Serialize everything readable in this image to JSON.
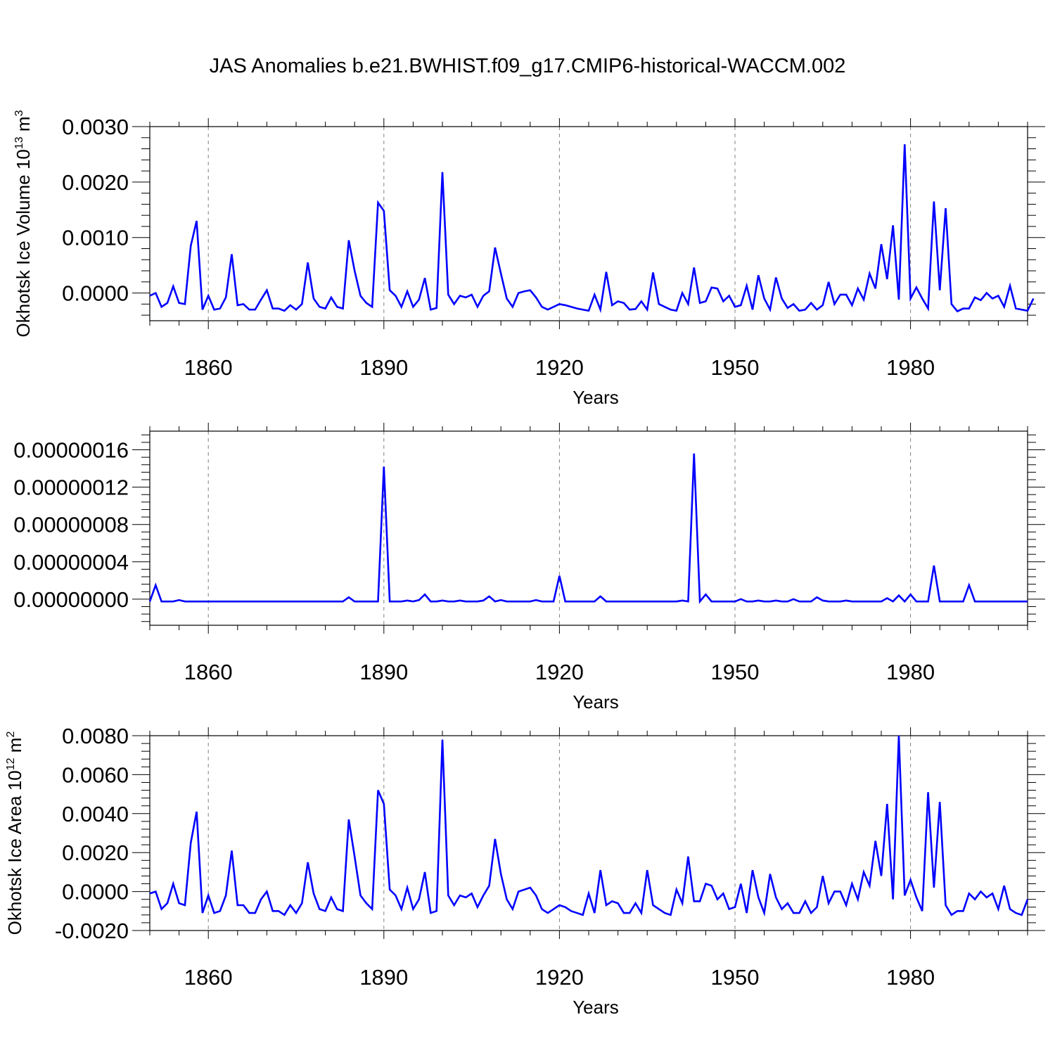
{
  "figure": {
    "title": "JAS Anomalies b.e21.BWHIST.f09_g17.CMIP6-historical-WACCM.002"
  },
  "chart_data": [
    {
      "type": "line",
      "title": "JAS Anomalies b.e21.BWHIST.f09_g17.CMIP6-historical-WACCM.002",
      "xlabel": "Years",
      "ylabel": "Okhotsk Ice Volume 10",
      "ylabel_sup1": "13",
      "ylabel_mid": " m",
      "ylabel_sup2": "3",
      "xlim": [
        1850,
        2000
      ],
      "ylim": [
        -0.0005,
        0.003
      ],
      "xticks": [
        1860,
        1890,
        1920,
        1950,
        1980
      ],
      "xtick_labels": [
        "1860",
        "1890",
        "1920",
        "1950",
        "1980"
      ],
      "yticks": [
        0.0,
        0.001,
        0.002,
        0.003
      ],
      "ytick_labels": [
        "0.0000",
        "0.0010",
        "0.0020",
        "0.0030"
      ],
      "grid": "vertical dashed at major x ticks",
      "line_color": "#0000ff",
      "series": [
        {
          "x_start": 1850,
          "values": [
            -5e-05,
            0.0,
            -0.00025,
            -0.00018,
            0.00012,
            -0.00018,
            -0.0002,
            0.00085,
            0.0013,
            -0.0003,
            -5e-05,
            -0.0003,
            -0.00028,
            -8e-05,
            0.0007,
            -0.00022,
            -0.0002,
            -0.0003,
            -0.0003,
            -0.00012,
            5e-05,
            -0.00028,
            -0.00028,
            -0.00032,
            -0.00022,
            -0.0003,
            -0.0002,
            0.00055,
            -0.0001,
            -0.00025,
            -0.00028,
            -8e-05,
            -0.00025,
            -0.00028,
            0.00095,
            0.0004,
            -5e-05,
            -0.00018,
            -0.00025,
            0.00163,
            0.00148,
            5e-05,
            -5e-05,
            -0.00025,
            3e-05,
            -0.00025,
            -0.00012,
            0.00027,
            -0.0003,
            -0.00027,
            0.00218,
            -3e-05,
            -0.0002,
            -5e-05,
            -8e-05,
            -3e-05,
            -0.00025,
            -5e-05,
            3e-05,
            0.00082,
            0.00035,
            -0.0001,
            -0.00025,
            0.0,
            3e-05,
            5e-05,
            -8e-05,
            -0.00025,
            -0.0003,
            -0.00025,
            -0.0002,
            -0.00022,
            -0.00025,
            -0.00028,
            -0.0003,
            -0.00032,
            -3e-05,
            -0.0003,
            0.00038,
            -0.00022,
            -0.00015,
            -0.00018,
            -0.0003,
            -0.00029,
            -0.00015,
            -0.0003,
            0.00037,
            -0.0002,
            -0.00025,
            -0.0003,
            -0.00032,
            0.0,
            -0.0002,
            0.00046,
            -0.00018,
            -0.00015,
            0.0001,
            8e-05,
            -0.00015,
            -5e-05,
            -0.00025,
            -0.00022,
            0.00013,
            -0.0003,
            0.00032,
            -0.0001,
            -0.0003,
            0.00028,
            -0.0001,
            -0.00027,
            -0.0002,
            -0.00032,
            -0.0003,
            -0.00018,
            -0.0003,
            -0.00022,
            0.0002,
            -0.0002,
            -3e-05,
            -3e-05,
            -0.00022,
            8e-05,
            -0.00012,
            0.00035,
            8e-05,
            0.00088,
            0.00025,
            0.00122,
            -0.00012,
            0.00268,
            -0.0001,
            0.0001,
            -0.0001,
            -0.00028,
            0.00165,
            5e-05,
            0.00153,
            -0.0002,
            -0.00033,
            -0.00028,
            -0.00028,
            -8e-05,
            -0.00013,
            0.0,
            -0.0001,
            -5e-05,
            -0.00025,
            0.00013,
            -0.00028,
            -0.0003,
            -0.00032,
            -0.0001
          ]
        }
      ]
    },
    {
      "type": "line",
      "xlabel": "Years",
      "xlim": [
        1850,
        2000
      ],
      "ylim": [
        -2.8e-08,
        1.8e-07
      ],
      "xticks": [
        1860,
        1890,
        1920,
        1950,
        1980
      ],
      "xtick_labels": [
        "1860",
        "1890",
        "1920",
        "1950",
        "1980"
      ],
      "yticks": [
        0.0,
        4e-08,
        8e-08,
        1.2e-07,
        1.6e-07
      ],
      "ytick_labels": [
        "0.00000000",
        "0.00000004",
        "0.00000008",
        "0.00000012",
        "0.00000016"
      ],
      "grid": "vertical dashed at major x ticks",
      "line_color": "#0000ff",
      "series": [
        {
          "x_start": 1850,
          "values": [
            -2.5e-09,
            1.5e-08,
            -2.5e-09,
            -2.5e-09,
            -2.5e-09,
            -1e-09,
            -2.5e-09,
            -2.5e-09,
            -2.5e-09,
            -2.5e-09,
            -2.5e-09,
            -2.5e-09,
            -2.5e-09,
            -2.5e-09,
            -2.5e-09,
            -2.5e-09,
            -2.5e-09,
            -2.5e-09,
            -2.5e-09,
            -2.5e-09,
            -2.5e-09,
            -2.5e-09,
            -2.5e-09,
            -2.5e-09,
            -2.5e-09,
            -2.5e-09,
            -2.5e-09,
            -2.5e-09,
            -2.5e-09,
            -2.5e-09,
            -2.5e-09,
            -2.5e-09,
            -2.5e-09,
            -2.5e-09,
            2e-09,
            -2.5e-09,
            -2.5e-09,
            -2.5e-09,
            -2.5e-09,
            -2.5e-09,
            1.42e-07,
            -2.5e-09,
            -2.5e-09,
            -2.5e-09,
            -1.5e-09,
            -2.5e-09,
            -1e-09,
            5e-09,
            -2.5e-09,
            -2.5e-09,
            -1.5e-09,
            -2.5e-09,
            -2.5e-09,
            -1.5e-09,
            -2.5e-09,
            -2.5e-09,
            -2.5e-09,
            -1.5e-09,
            3e-09,
            -2.5e-09,
            -1e-09,
            -2.5e-09,
            -2.5e-09,
            -2.5e-09,
            -2.5e-09,
            -2.5e-09,
            -1e-09,
            -2.5e-09,
            -2.5e-09,
            -2.5e-09,
            2.5e-08,
            -2.5e-09,
            -2.5e-09,
            -2.5e-09,
            -2.5e-09,
            -2.5e-09,
            -2.5e-09,
            3e-09,
            -2.5e-09,
            -2.5e-09,
            -2.5e-09,
            -2.5e-09,
            -2.5e-09,
            -2.5e-09,
            -2.5e-09,
            -2.5e-09,
            -2.5e-09,
            -2.5e-09,
            -2.5e-09,
            -2.5e-09,
            -2.5e-09,
            -1.5e-09,
            -2.5e-09,
            1.56e-07,
            -2.5e-09,
            5e-09,
            -2.5e-09,
            -2.5e-09,
            -2.5e-09,
            -2.5e-09,
            -2.5e-09,
            0.0,
            -2.5e-09,
            -2.5e-09,
            -1.5e-09,
            -2.5e-09,
            -2.5e-09,
            -1.5e-09,
            -2.5e-09,
            -2.5e-09,
            0.0,
            -2.5e-09,
            -2.5e-09,
            -2.5e-09,
            2e-09,
            -1.5e-09,
            -2.5e-09,
            -2.5e-09,
            -2.5e-09,
            -1.5e-09,
            -2.5e-09,
            -2.5e-09,
            -2.5e-09,
            -2.5e-09,
            -2.5e-09,
            -2.5e-09,
            1e-09,
            -2.5e-09,
            4e-09,
            -2.5e-09,
            5e-09,
            -2.5e-09,
            -2.5e-09,
            -2.5e-09,
            3.6e-08,
            -2.5e-09,
            -2.5e-09,
            -2.5e-09,
            -2.5e-09,
            -2.5e-09,
            1.5e-08,
            -2.5e-09,
            -2.5e-09,
            -2.5e-09,
            -2.5e-09,
            -2.5e-09,
            -2.5e-09,
            -2.5e-09,
            -2.5e-09,
            -2.5e-09,
            -2.5e-09
          ]
        }
      ]
    },
    {
      "type": "line",
      "xlabel": "Years",
      "ylabel": "Okhotsk Ice Area 10",
      "ylabel_sup1": "12",
      "ylabel_mid": " m",
      "ylabel_sup2": "2",
      "xlim": [
        1850,
        2000
      ],
      "ylim": [
        -0.002,
        0.008
      ],
      "xticks": [
        1860,
        1890,
        1920,
        1950,
        1980
      ],
      "xtick_labels": [
        "1860",
        "1890",
        "1920",
        "1950",
        "1980"
      ],
      "yticks": [
        -0.002,
        0.0,
        0.002,
        0.004,
        0.006,
        0.008
      ],
      "ytick_labels": [
        "-0.0020",
        "0.0000",
        "0.0020",
        "0.0040",
        "0.0060",
        "0.0080"
      ],
      "grid": "vertical dashed at major x ticks",
      "line_color": "#0000ff",
      "series": [
        {
          "x_start": 1850,
          "values": [
            -0.0001,
            0.0,
            -0.0009,
            -0.0006,
            0.0004,
            -0.0006,
            -0.0007,
            0.0025,
            0.0041,
            -0.0011,
            -0.0002,
            -0.0011,
            -0.001,
            -0.0002,
            0.0021,
            -0.0007,
            -0.0007,
            -0.0011,
            -0.0011,
            -0.0004,
            0.0,
            -0.001,
            -0.001,
            -0.0012,
            -0.0007,
            -0.0011,
            -0.0006,
            0.0015,
            -0.0001,
            -0.0009,
            -0.001,
            -0.0003,
            -0.0009,
            -0.001,
            0.0037,
            0.0018,
            -0.0002,
            -0.0006,
            -0.0009,
            0.0052,
            0.0045,
            0.0001,
            -0.0002,
            -0.0009,
            0.0002,
            -0.0009,
            -0.0004,
            0.001,
            -0.0011,
            -0.001,
            0.0078,
            -0.0002,
            -0.0007,
            -0.0002,
            -0.0003,
            -0.0001,
            -0.0008,
            -0.0002,
            0.0003,
            0.0027,
            0.0009,
            -0.0004,
            -0.0009,
            0.0,
            0.0001,
            0.0002,
            -0.0002,
            -0.0009,
            -0.0011,
            -0.0009,
            -0.0007,
            -0.0008,
            -0.001,
            -0.0011,
            -0.0012,
            -0.0001,
            -0.0011,
            0.0011,
            -0.0007,
            -0.0005,
            -0.0006,
            -0.0011,
            -0.0011,
            -0.0006,
            -0.0011,
            0.0011,
            -0.0007,
            -0.0009,
            -0.0011,
            -0.0012,
            0.0001,
            -0.0006,
            0.0018,
            -0.0005,
            -0.0005,
            0.0004,
            0.0003,
            -0.0004,
            -0.0001,
            -0.0009,
            -0.0008,
            0.0004,
            -0.0011,
            0.0011,
            -0.0003,
            -0.0011,
            0.0009,
            -0.0003,
            -0.0009,
            -0.0006,
            -0.0011,
            -0.0011,
            -0.0005,
            -0.0011,
            -0.0008,
            0.0008,
            -0.0006,
            0.0,
            0.0,
            -0.0007,
            0.0004,
            -0.0004,
            0.001,
            0.0003,
            0.0026,
            0.0008,
            0.0045,
            -0.0004,
            0.008,
            -0.0002,
            0.0006,
            -0.0003,
            -0.001,
            0.0051,
            0.0002,
            0.0046,
            -0.0007,
            -0.0012,
            -0.001,
            -0.001,
            -0.0001,
            -0.0004,
            0.0,
            -0.0003,
            -0.0001,
            -0.0009,
            0.0003,
            -0.0009,
            -0.0011,
            -0.0012,
            -0.0004
          ]
        }
      ]
    }
  ]
}
